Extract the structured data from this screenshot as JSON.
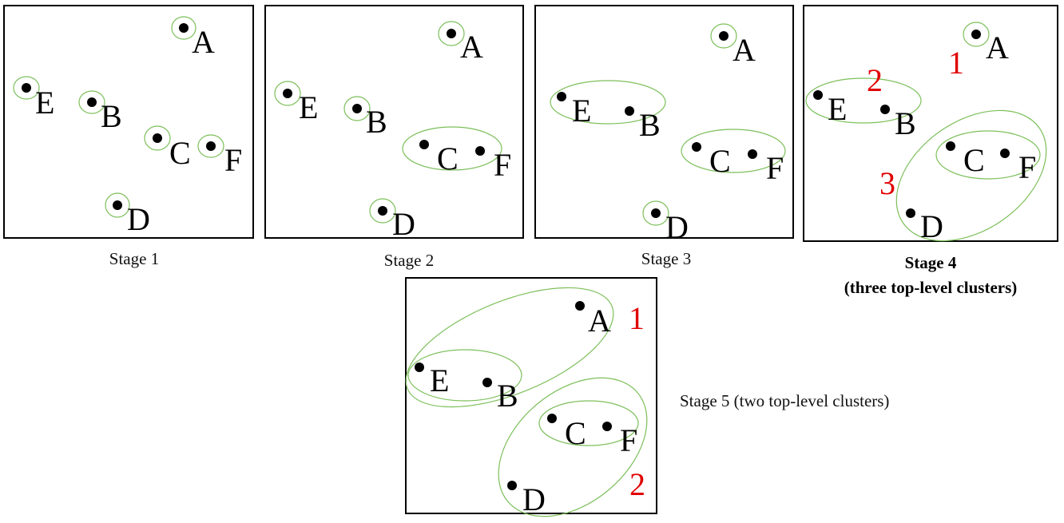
{
  "points": {
    "A": "A",
    "B": "B",
    "C": "C",
    "D": "D",
    "E": "E",
    "F": "F"
  },
  "stages": [
    {
      "caption": "Stage 1"
    },
    {
      "caption": "Stage 2"
    },
    {
      "caption": "Stage 3"
    },
    {
      "caption_line1": "Stage 4",
      "caption_line2": "(three top-level clusters)",
      "cluster_numbers": [
        "1",
        "2",
        "3"
      ]
    },
    {
      "caption": "Stage 5 (two top-level clusters)",
      "cluster_numbers": [
        "1",
        "2"
      ]
    }
  ],
  "colors": {
    "cluster_ring": "#7cbf5a",
    "cluster_number": "#e00000",
    "point": "#000000"
  }
}
